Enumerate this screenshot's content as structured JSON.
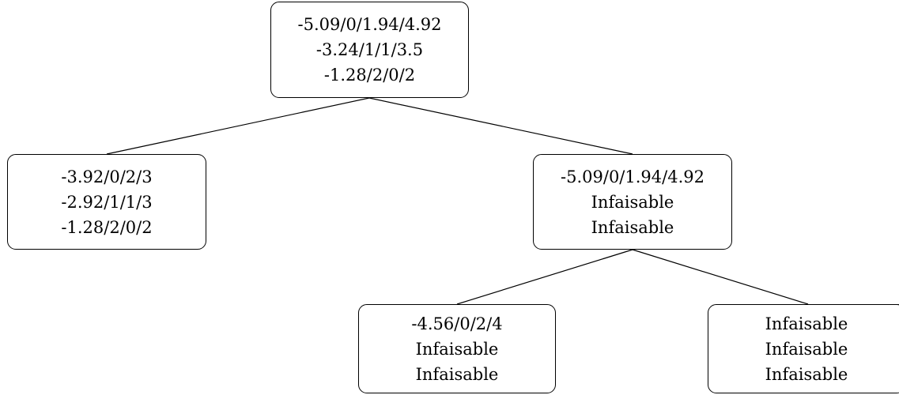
{
  "tree": {
    "root": {
      "lines": [
        "-5.09/0/1.94/4.92",
        "-3.24/1/1/3.5",
        "-1.28/2/0/2"
      ],
      "children": [
        "left",
        "right"
      ]
    },
    "left": {
      "lines": [
        "-3.92/0/2/3",
        "-2.92/1/1/3",
        "-1.28/2/0/2"
      ],
      "children": []
    },
    "right": {
      "lines": [
        "-5.09/0/1.94/4.92",
        "Infaisable",
        "Infaisable"
      ],
      "children": [
        "right_left",
        "right_right"
      ]
    },
    "right_left": {
      "lines": [
        "-4.56/0/2/4",
        "Infaisable",
        "Infaisable"
      ],
      "children": []
    },
    "right_right": {
      "lines": [
        "Infaisable",
        "Infaisable",
        "Infaisable"
      ],
      "children": []
    }
  }
}
